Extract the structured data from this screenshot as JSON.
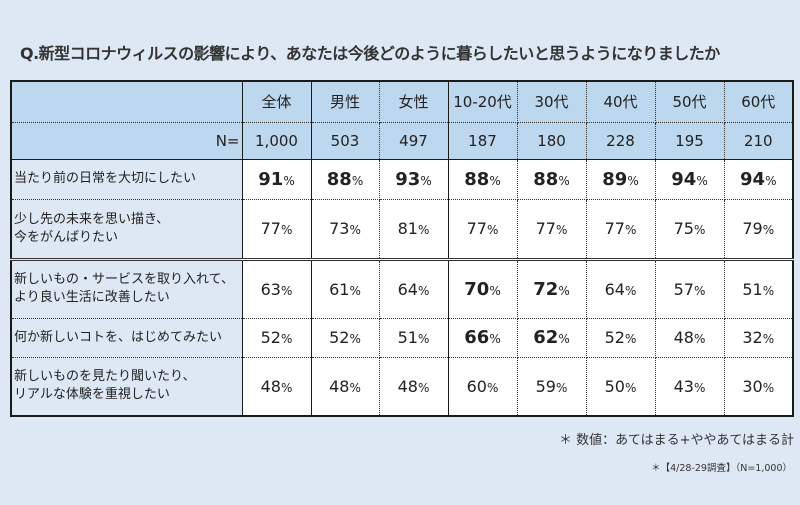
{
  "title": "Q.新型コロナウィルスの影響により、あなたは今後どのように暮らしたいと思うようになりましたか",
  "table": {
    "columns": [
      "全体",
      "男性",
      "女性",
      "10-20代",
      "30代",
      "40代",
      "50代",
      "60代"
    ],
    "n_label": "N=",
    "n_values": [
      "1,000",
      "503",
      "497",
      "187",
      "180",
      "228",
      "195",
      "210"
    ],
    "pct_sign": "%",
    "rows": [
      {
        "label_line1": "当たり前の日常を大切にしたい",
        "label_line2": "",
        "values": [
          "91",
          "88",
          "93",
          "88",
          "88",
          "89",
          "94",
          "94"
        ],
        "bold": [
          true,
          true,
          true,
          true,
          true,
          true,
          true,
          true
        ]
      },
      {
        "label_line1": "少し先の未来を思い描き、",
        "label_line2": "今をがんばりたい",
        "values": [
          "77",
          "73",
          "81",
          "77",
          "77",
          "77",
          "75",
          "79"
        ],
        "bold": [
          false,
          false,
          false,
          false,
          false,
          false,
          false,
          false
        ]
      },
      {
        "label_line1": "新しいもの・サービスを取り入れて、",
        "label_line2": "より良い生活に改善したい",
        "values": [
          "63",
          "61",
          "64",
          "70",
          "72",
          "64",
          "57",
          "51"
        ],
        "bold": [
          false,
          false,
          false,
          true,
          true,
          false,
          false,
          false
        ]
      },
      {
        "label_line1": "何か新しいコトを、はじめてみたい",
        "label_line2": "",
        "values": [
          "52",
          "52",
          "51",
          "66",
          "62",
          "52",
          "48",
          "32"
        ],
        "bold": [
          false,
          false,
          false,
          true,
          true,
          false,
          false,
          false
        ]
      },
      {
        "label_line1": "新しいものを見たり聞いたり、",
        "label_line2": "リアルな体験を重視したい",
        "values": [
          "48",
          "48",
          "48",
          "60",
          "59",
          "50",
          "43",
          "30"
        ],
        "bold": [
          false,
          false,
          false,
          false,
          false,
          false,
          false,
          false
        ]
      }
    ]
  },
  "notes": {
    "line1": "＊ 数値：あてはまる+ややあてはまる計",
    "line2": "＊【4/28-29調査】（N=1,000）"
  },
  "colors": {
    "background": "#dde8f4",
    "header": "#bdd7ee",
    "cell": "#ffffff",
    "border": "#1a1a1a"
  }
}
